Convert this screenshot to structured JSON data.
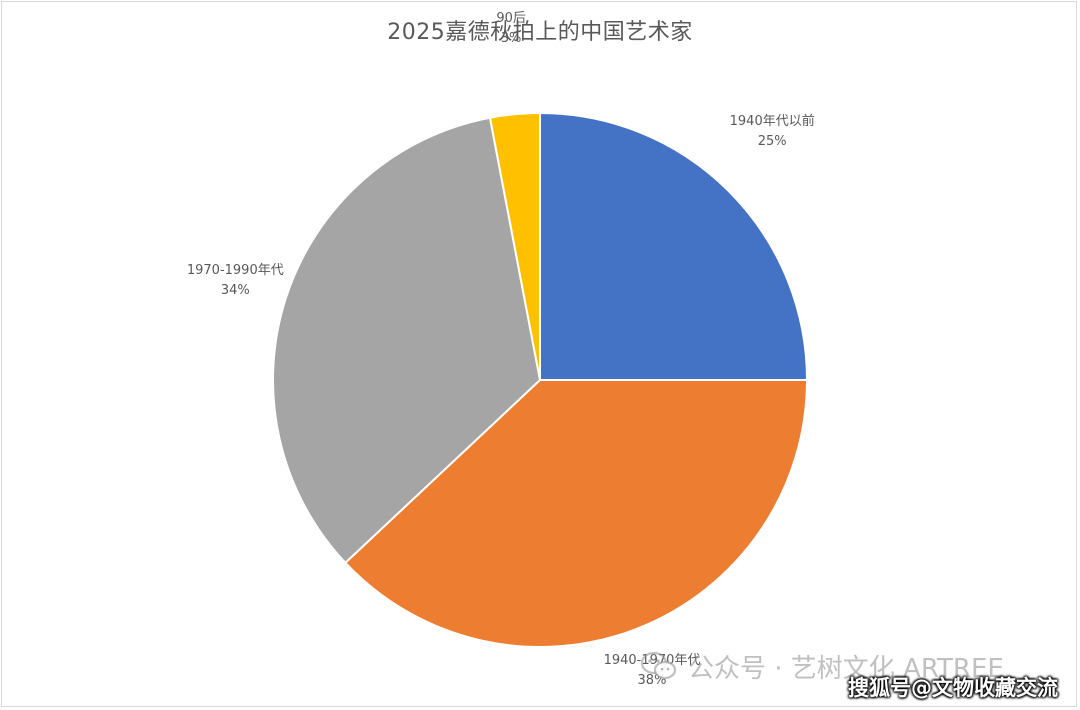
{
  "chart_data": {
    "type": "pie",
    "title": "2025嘉德秋拍上的中国艺术家",
    "slices": [
      {
        "name": "1940年代以前",
        "value": 25,
        "label": "25%",
        "color": "#4472c4"
      },
      {
        "name": "1940-1970年代",
        "value": 38,
        "label": "38%",
        "color": "#ed7d31"
      },
      {
        "name": "1970-1990年代",
        "value": 34,
        "label": "34%",
        "color": "#a5a5a5"
      },
      {
        "name": "90后",
        "value": 3,
        "label": "3%",
        "color": "#ffc000"
      }
    ],
    "start_angle": "12 o'clock",
    "direction": "clockwise",
    "legend": "none"
  },
  "watermarks": {
    "account": "公众号 · 艺树文化 ARTREE",
    "account_icon": "wechat-icon",
    "site": "搜狐号@文物收藏交流"
  }
}
